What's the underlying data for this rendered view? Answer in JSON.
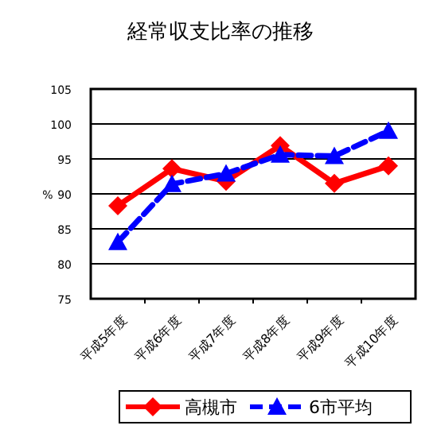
{
  "chart_data": {
    "type": "line",
    "title": "経常収支比率の推移",
    "ylabel": "%",
    "categories": [
      "平成5年度",
      "平成6年度",
      "平成7年度",
      "平成8年度",
      "平成9年度",
      "平成10年度"
    ],
    "series": [
      {
        "name": "高槻市",
        "color": "#ff0000",
        "marker": "diamond",
        "line_style": "solid",
        "values": [
          88.3,
          93.6,
          91.8,
          96.9,
          91.5,
          94.0
        ]
      },
      {
        "name": "6市平均",
        "color": "#0000ff",
        "marker": "triangle",
        "line_style": "dashed",
        "values": [
          83.1,
          91.4,
          92.9,
          95.6,
          95.4,
          99.0
        ]
      }
    ],
    "ylim": [
      75,
      105
    ],
    "yticks": [
      75,
      80,
      85,
      90,
      95,
      100,
      105
    ],
    "grid": "y",
    "legend": "bottom"
  }
}
